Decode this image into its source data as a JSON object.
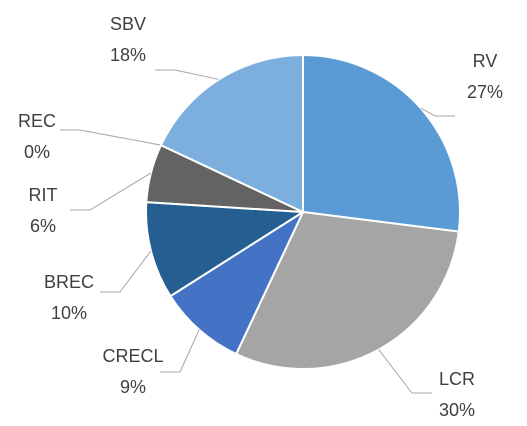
{
  "chart_data": {
    "type": "pie",
    "categories": [
      "RV",
      "LCR",
      "CRECL",
      "BREC",
      "RIT",
      "REC",
      "SBV"
    ],
    "values": [
      27,
      30,
      9,
      10,
      6,
      0,
      18
    ],
    "value_labels": [
      "27%",
      "30%",
      "9%",
      "10%",
      "6%",
      "0%",
      "18%"
    ],
    "colors": [
      "#5b9bd5",
      "#a5a5a5",
      "#4472c4",
      "#255e91",
      "#636363",
      "#9e480e",
      "#7cafdd"
    ]
  }
}
